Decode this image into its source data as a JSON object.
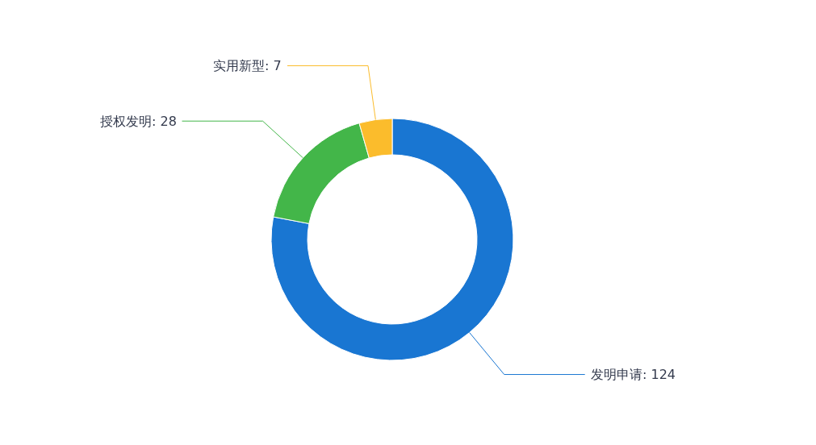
{
  "chart_data": {
    "type": "donut",
    "categories": [
      "发明申请: 124",
      "授权发明: 28",
      "实用新型: 7"
    ],
    "values": [
      124,
      28,
      7
    ],
    "colors": [
      "#1976d2",
      "#43b649",
      "#fbbc2c"
    ],
    "legend": false
  }
}
